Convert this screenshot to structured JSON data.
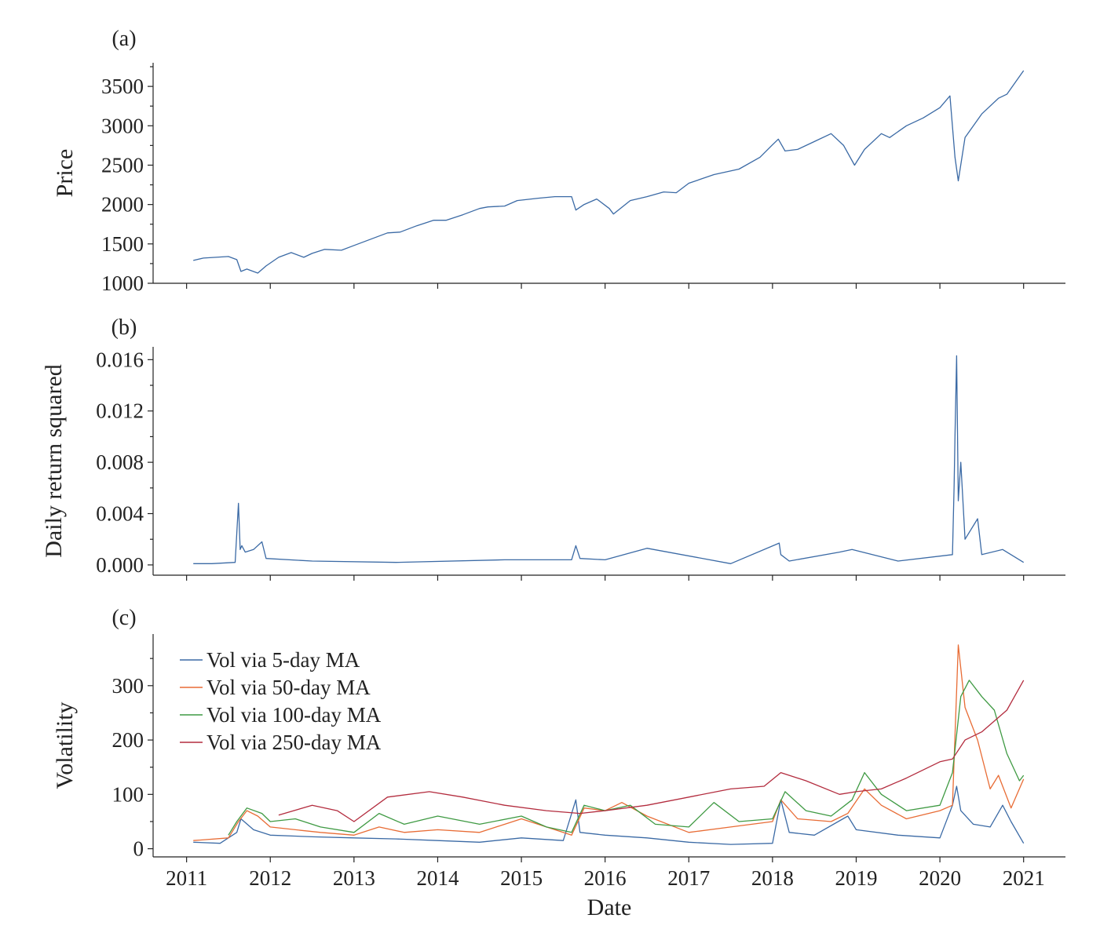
{
  "chart_data": [
    {
      "type": "line",
      "panel_label": "(a)",
      "ylabel": "Price",
      "xlabel": "",
      "ylim": [
        1000,
        3800
      ],
      "yticks": [
        1000,
        1500,
        2000,
        2500,
        3000,
        3500
      ],
      "ytick_labels": [
        "1000",
        "1500",
        "2000",
        "2500",
        "3000",
        "3500"
      ],
      "xlim": [
        2010.6,
        2021.5
      ],
      "xticks": [
        2011,
        2012,
        2013,
        2014,
        2015,
        2016,
        2017,
        2018,
        2019,
        2020,
        2021
      ],
      "grid": false,
      "series": [
        {
          "color": "#3b6aa5",
          "x": [
            2011.08,
            2011.2,
            2011.35,
            2011.5,
            2011.6,
            2011.65,
            2011.72,
            2011.85,
            2011.95,
            2012.1,
            2012.25,
            2012.4,
            2012.5,
            2012.65,
            2012.85,
            2013.0,
            2013.2,
            2013.4,
            2013.55,
            2013.75,
            2013.95,
            2014.1,
            2014.3,
            2014.5,
            2014.6,
            2014.8,
            2014.95,
            2015.2,
            2015.4,
            2015.6,
            2015.65,
            2015.75,
            2015.9,
            2016.05,
            2016.1,
            2016.3,
            2016.5,
            2016.7,
            2016.85,
            2017.0,
            2017.3,
            2017.6,
            2017.85,
            2018.0,
            2018.07,
            2018.15,
            2018.3,
            2018.5,
            2018.7,
            2018.85,
            2018.98,
            2019.1,
            2019.3,
            2019.4,
            2019.6,
            2019.8,
            2020.0,
            2020.12,
            2020.18,
            2020.22,
            2020.3,
            2020.5,
            2020.7,
            2020.8,
            2020.9,
            2021.0
          ],
          "values": [
            1290,
            1320,
            1330,
            1340,
            1300,
            1150,
            1180,
            1130,
            1220,
            1330,
            1390,
            1330,
            1380,
            1430,
            1420,
            1480,
            1560,
            1640,
            1650,
            1730,
            1800,
            1800,
            1870,
            1950,
            1970,
            1980,
            2050,
            2080,
            2100,
            2100,
            1930,
            2000,
            2070,
            1950,
            1880,
            2050,
            2100,
            2160,
            2150,
            2270,
            2380,
            2450,
            2600,
            2760,
            2830,
            2680,
            2700,
            2800,
            2900,
            2750,
            2500,
            2700,
            2900,
            2850,
            3000,
            3100,
            3230,
            3380,
            2600,
            2300,
            2850,
            3150,
            3350,
            3400,
            3550,
            3700
          ]
        }
      ]
    },
    {
      "type": "line",
      "panel_label": "(b)",
      "ylabel": "Daily return squared",
      "xlabel": "",
      "ylim": [
        -0.0008,
        0.017
      ],
      "yticks": [
        0.0,
        0.004,
        0.008,
        0.012,
        0.016
      ],
      "ytick_labels": [
        "0.000",
        "0.004",
        "0.008",
        "0.012",
        "0.016"
      ],
      "xlim": [
        2010.6,
        2021.5
      ],
      "xticks": [
        2011,
        2012,
        2013,
        2014,
        2015,
        2016,
        2017,
        2018,
        2019,
        2020,
        2021
      ],
      "grid": false,
      "series": [
        {
          "color": "#3b6aa5",
          "x": [
            2011.08,
            2011.3,
            2011.58,
            2011.6,
            2011.62,
            2011.64,
            2011.66,
            2011.7,
            2011.8,
            2011.9,
            2011.95,
            2012.5,
            2013.5,
            2014.8,
            2015.6,
            2015.65,
            2015.7,
            2016.0,
            2016.5,
            2017.5,
            2018.08,
            2018.1,
            2018.2,
            2018.8,
            2018.95,
            2019.5,
            2020.15,
            2020.17,
            2020.18,
            2020.2,
            2020.22,
            2020.25,
            2020.3,
            2020.45,
            2020.5,
            2020.75,
            2021.0
          ],
          "values": [
            0.0001,
            0.0001,
            0.0002,
            0.0025,
            0.0048,
            0.0012,
            0.0015,
            0.001,
            0.0012,
            0.0018,
            0.0005,
            0.0003,
            0.0002,
            0.0004,
            0.0004,
            0.0015,
            0.0005,
            0.0004,
            0.0013,
            0.0001,
            0.0017,
            0.0008,
            0.0003,
            0.001,
            0.0012,
            0.0003,
            0.0008,
            0.0062,
            0.01,
            0.0163,
            0.005,
            0.008,
            0.002,
            0.0036,
            0.0008,
            0.0012,
            0.0002
          ]
        }
      ]
    },
    {
      "type": "line",
      "panel_label": "(c)",
      "ylabel": "Volatility",
      "xlabel": "Date",
      "ylim": [
        -15,
        395
      ],
      "yticks": [
        0,
        100,
        200,
        300
      ],
      "ytick_labels": [
        "0",
        "100",
        "200",
        "300"
      ],
      "xlim": [
        2010.6,
        2021.5
      ],
      "xticks": [
        2011,
        2012,
        2013,
        2014,
        2015,
        2016,
        2017,
        2018,
        2019,
        2020,
        2021
      ],
      "xtick_labels": [
        "2011",
        "2012",
        "2013",
        "2014",
        "2015",
        "2016",
        "2017",
        "2018",
        "2019",
        "2020",
        "2021"
      ],
      "grid": false,
      "legend": "upper-left",
      "series": [
        {
          "name": "Vol via 5-day MA",
          "color": "#3b6aa5",
          "x": [
            2011.08,
            2011.4,
            2011.6,
            2011.65,
            2011.8,
            2012.0,
            2012.5,
            2013.0,
            2013.5,
            2014.0,
            2014.5,
            2015.0,
            2015.5,
            2015.65,
            2015.7,
            2016.0,
            2016.5,
            2017.0,
            2017.5,
            2018.0,
            2018.1,
            2018.2,
            2018.5,
            2018.9,
            2019.0,
            2019.5,
            2020.0,
            2020.15,
            2020.2,
            2020.25,
            2020.4,
            2020.6,
            2020.75,
            2020.85,
            2021.0
          ],
          "values": [
            12,
            10,
            30,
            55,
            35,
            25,
            22,
            20,
            18,
            15,
            12,
            20,
            15,
            90,
            30,
            25,
            20,
            12,
            8,
            10,
            90,
            30,
            25,
            60,
            35,
            25,
            20,
            80,
            115,
            70,
            45,
            40,
            80,
            50,
            10
          ]
        },
        {
          "name": "Vol via 50-day MA",
          "color": "#e86c35",
          "x": [
            2011.08,
            2011.5,
            2011.62,
            2011.72,
            2011.85,
            2012.0,
            2012.3,
            2012.6,
            2013.0,
            2013.3,
            2013.6,
            2014.0,
            2014.5,
            2015.0,
            2015.3,
            2015.6,
            2015.75,
            2016.0,
            2016.2,
            2016.5,
            2017.0,
            2017.5,
            2018.0,
            2018.1,
            2018.3,
            2018.7,
            2018.9,
            2019.1,
            2019.3,
            2019.6,
            2020.0,
            2020.15,
            2020.22,
            2020.3,
            2020.45,
            2020.6,
            2020.7,
            2020.85,
            2021.0
          ],
          "values": [
            15,
            20,
            50,
            70,
            60,
            40,
            35,
            30,
            25,
            40,
            30,
            35,
            30,
            55,
            40,
            25,
            75,
            70,
            85,
            60,
            30,
            40,
            50,
            90,
            55,
            50,
            65,
            110,
            80,
            55,
            70,
            80,
            375,
            260,
            200,
            110,
            135,
            75,
            128
          ]
        },
        {
          "name": "Vol via 100-day MA",
          "color": "#3f9a43",
          "x": [
            2011.5,
            2011.6,
            2011.72,
            2011.9,
            2012.0,
            2012.3,
            2012.6,
            2013.0,
            2013.3,
            2013.6,
            2014.0,
            2014.5,
            2015.0,
            2015.3,
            2015.6,
            2015.75,
            2016.0,
            2016.3,
            2016.6,
            2017.0,
            2017.3,
            2017.6,
            2018.0,
            2018.15,
            2018.4,
            2018.7,
            2018.95,
            2019.1,
            2019.3,
            2019.6,
            2020.0,
            2020.15,
            2020.25,
            2020.35,
            2020.5,
            2020.65,
            2020.8,
            2020.95,
            2021.0
          ],
          "values": [
            25,
            50,
            75,
            65,
            50,
            55,
            40,
            30,
            65,
            45,
            60,
            45,
            60,
            40,
            30,
            80,
            70,
            80,
            45,
            40,
            85,
            50,
            55,
            105,
            70,
            60,
            90,
            140,
            100,
            70,
            80,
            140,
            280,
            310,
            280,
            255,
            175,
            125,
            135
          ]
        },
        {
          "name": "Vol via 250-day MA",
          "color": "#b32c3e",
          "x": [
            2012.1,
            2012.5,
            2012.8,
            2013.0,
            2013.4,
            2013.9,
            2014.3,
            2014.8,
            2015.3,
            2015.7,
            2016.0,
            2016.5,
            2017.0,
            2017.5,
            2017.9,
            2018.1,
            2018.4,
            2018.8,
            2019.0,
            2019.3,
            2019.6,
            2020.0,
            2020.15,
            2020.3,
            2020.5,
            2020.8,
            2021.0
          ],
          "values": [
            62,
            80,
            70,
            50,
            95,
            105,
            95,
            80,
            70,
            65,
            70,
            80,
            95,
            110,
            115,
            140,
            125,
            100,
            105,
            110,
            130,
            160,
            165,
            200,
            215,
            255,
            310
          ]
        }
      ]
    }
  ]
}
